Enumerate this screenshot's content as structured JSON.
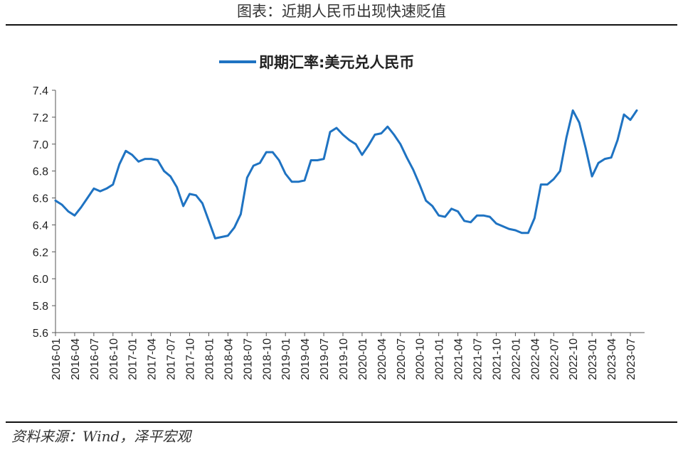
{
  "figure": {
    "title": "图表：近期人民币出现快速贬值",
    "source": "资料来源：Wind，泽平宏观"
  },
  "colors": {
    "series": "#1f73c2",
    "axis": "#555555",
    "text": "#222222"
  },
  "chart_data": {
    "type": "line",
    "title": "",
    "xlabel": "",
    "ylabel": "",
    "grid": false,
    "legend": "top-center",
    "ylim": [
      5.6,
      7.4
    ],
    "yticks": [
      "5.6",
      "5.8",
      "6.0",
      "6.2",
      "6.4",
      "6.6",
      "6.8",
      "7.0",
      "7.2",
      "7.4"
    ],
    "xticks": [
      "2016-01",
      "2016-04",
      "2016-07",
      "2016-10",
      "2017-01",
      "2017-04",
      "2017-07",
      "2017-10",
      "2018-01",
      "2018-04",
      "2018-07",
      "2018-10",
      "2019-01",
      "2019-04",
      "2019-07",
      "2019-10",
      "2020-01",
      "2020-04",
      "2020-07",
      "2020-10",
      "2021-01",
      "2021-04",
      "2021-07",
      "2021-10",
      "2022-01",
      "2022-04",
      "2022-07",
      "2022-10",
      "2023-01",
      "2023-04",
      "2023-07"
    ],
    "series": [
      {
        "name": "即期汇率:美元兑人民币",
        "points": [
          [
            "2016-01",
            6.58
          ],
          [
            "2016-02",
            6.55
          ],
          [
            "2016-03",
            6.5
          ],
          [
            "2016-04",
            6.47
          ],
          [
            "2016-05",
            6.53
          ],
          [
            "2016-06",
            6.6
          ],
          [
            "2016-07",
            6.67
          ],
          [
            "2016-08",
            6.65
          ],
          [
            "2016-09",
            6.67
          ],
          [
            "2016-10",
            6.7
          ],
          [
            "2016-11",
            6.85
          ],
          [
            "2016-12",
            6.95
          ],
          [
            "2017-01",
            6.92
          ],
          [
            "2017-02",
            6.87
          ],
          [
            "2017-03",
            6.89
          ],
          [
            "2017-04",
            6.89
          ],
          [
            "2017-05",
            6.88
          ],
          [
            "2017-06",
            6.8
          ],
          [
            "2017-07",
            6.76
          ],
          [
            "2017-08",
            6.68
          ],
          [
            "2017-09",
            6.54
          ],
          [
            "2017-10",
            6.63
          ],
          [
            "2017-11",
            6.62
          ],
          [
            "2017-12",
            6.56
          ],
          [
            "2018-01",
            6.43
          ],
          [
            "2018-02",
            6.3
          ],
          [
            "2018-03",
            6.31
          ],
          [
            "2018-04",
            6.32
          ],
          [
            "2018-05",
            6.38
          ],
          [
            "2018-06",
            6.48
          ],
          [
            "2018-07",
            6.75
          ],
          [
            "2018-08",
            6.84
          ],
          [
            "2018-09",
            6.86
          ],
          [
            "2018-10",
            6.94
          ],
          [
            "2018-11",
            6.94
          ],
          [
            "2018-12",
            6.88
          ],
          [
            "2019-01",
            6.78
          ],
          [
            "2019-02",
            6.72
          ],
          [
            "2019-03",
            6.72
          ],
          [
            "2019-04",
            6.73
          ],
          [
            "2019-05",
            6.88
          ],
          [
            "2019-06",
            6.88
          ],
          [
            "2019-07",
            6.89
          ],
          [
            "2019-08",
            7.09
          ],
          [
            "2019-09",
            7.12
          ],
          [
            "2019-10",
            7.07
          ],
          [
            "2019-11",
            7.03
          ],
          [
            "2019-12",
            7.0
          ],
          [
            "2020-01",
            6.92
          ],
          [
            "2020-02",
            6.99
          ],
          [
            "2020-03",
            7.07
          ],
          [
            "2020-04",
            7.08
          ],
          [
            "2020-05",
            7.13
          ],
          [
            "2020-06",
            7.07
          ],
          [
            "2020-07",
            7.0
          ],
          [
            "2020-08",
            6.9
          ],
          [
            "2020-09",
            6.81
          ],
          [
            "2020-10",
            6.7
          ],
          [
            "2020-11",
            6.58
          ],
          [
            "2020-12",
            6.54
          ],
          [
            "2021-01",
            6.47
          ],
          [
            "2021-02",
            6.46
          ],
          [
            "2021-03",
            6.52
          ],
          [
            "2021-04",
            6.5
          ],
          [
            "2021-05",
            6.43
          ],
          [
            "2021-06",
            6.42
          ],
          [
            "2021-07",
            6.47
          ],
          [
            "2021-08",
            6.47
          ],
          [
            "2021-09",
            6.46
          ],
          [
            "2021-10",
            6.41
          ],
          [
            "2021-11",
            6.39
          ],
          [
            "2021-12",
            6.37
          ],
          [
            "2022-01",
            6.36
          ],
          [
            "2022-02",
            6.34
          ],
          [
            "2022-03",
            6.34
          ],
          [
            "2022-04",
            6.45
          ],
          [
            "2022-05",
            6.7
          ],
          [
            "2022-06",
            6.7
          ],
          [
            "2022-07",
            6.74
          ],
          [
            "2022-08",
            6.8
          ],
          [
            "2022-09",
            7.05
          ],
          [
            "2022-10",
            7.25
          ],
          [
            "2022-11",
            7.16
          ],
          [
            "2022-12",
            6.97
          ],
          [
            "2023-01",
            6.76
          ],
          [
            "2023-02",
            6.86
          ],
          [
            "2023-03",
            6.89
          ],
          [
            "2023-04",
            6.9
          ],
          [
            "2023-05",
            7.03
          ],
          [
            "2023-06",
            7.22
          ],
          [
            "2023-07",
            7.18
          ],
          [
            "2023-08",
            7.25
          ]
        ]
      }
    ]
  }
}
